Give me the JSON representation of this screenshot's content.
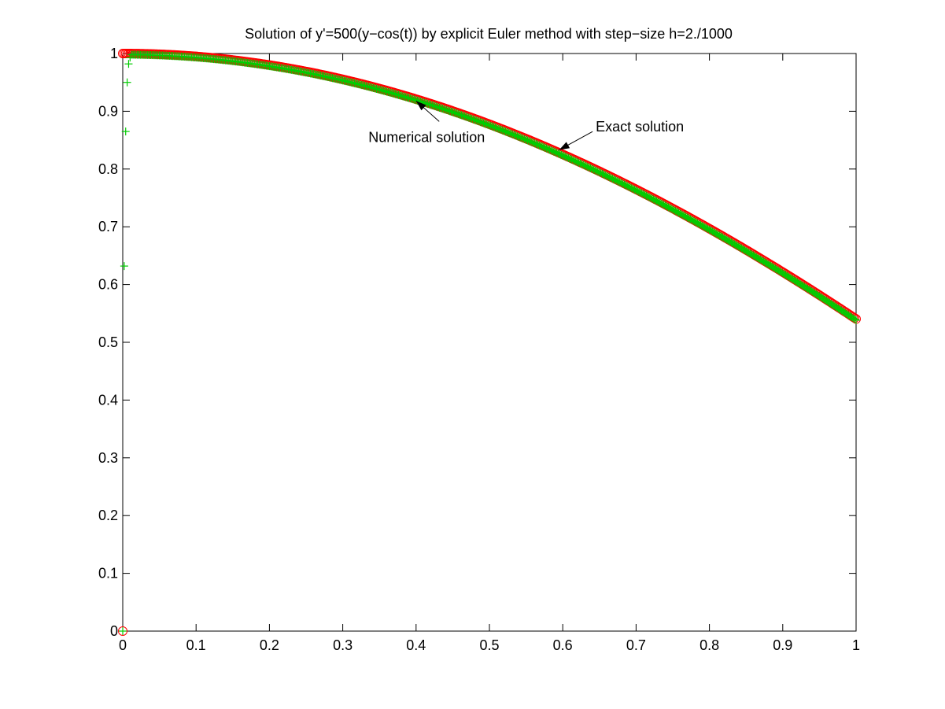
{
  "chart_data": {
    "type": "scatter",
    "title": "Solution of y'=500(y−cos(t)) by explicit Euler method with step−size h=2./1000",
    "xlabel": "",
    "ylabel": "",
    "xlim": [
      0,
      1
    ],
    "ylim": [
      0,
      1
    ],
    "x_ticks": [
      0,
      0.1,
      0.2,
      0.3,
      0.4,
      0.5,
      0.6,
      0.7,
      0.8,
      0.9,
      1
    ],
    "x_tick_labels": [
      "0",
      "0.1",
      "0.2",
      "0.3",
      "0.4",
      "0.5",
      "0.6",
      "0.7",
      "0.8",
      "0.9",
      "1"
    ],
    "y_ticks": [
      0,
      0.1,
      0.2,
      0.3,
      0.4,
      0.5,
      0.6,
      0.7,
      0.8,
      0.9,
      1
    ],
    "y_tick_labels": [
      "0",
      "0.1",
      "0.2",
      "0.3",
      "0.4",
      "0.5",
      "0.6",
      "0.7",
      "0.8",
      "0.9",
      "1"
    ],
    "grid": false,
    "legend": "none",
    "series": [
      {
        "marker": "circle",
        "color": "#ff0000",
        "description": "exact solution y = cos(t)",
        "x_range": [
          0,
          1
        ],
        "step": 0.002,
        "extra_points": [
          [
            0,
            0
          ]
        ]
      },
      {
        "marker": "plus",
        "color": "#00cc00",
        "description": "explicit Euler numerical solution",
        "initial_points": [
          [
            0,
            0
          ],
          [
            0.002,
            0.632
          ],
          [
            0.004,
            0.865
          ],
          [
            0.006,
            0.95
          ],
          [
            0.008,
            0.982
          ],
          [
            0.01,
            0.993
          ]
        ],
        "x_range": [
          0.012,
          1
        ],
        "step": 0.002,
        "offset_from_exact": -0.002
      }
    ],
    "annotations": [
      {
        "text": "Numerical solution",
        "arrow_to": [
          0.4,
          0.918
        ],
        "label_at": [
          0.335,
          0.855
        ]
      },
      {
        "text": "Exact solution",
        "arrow_to": [
          0.595,
          0.833
        ],
        "label_at": [
          0.645,
          0.873
        ]
      }
    ]
  }
}
